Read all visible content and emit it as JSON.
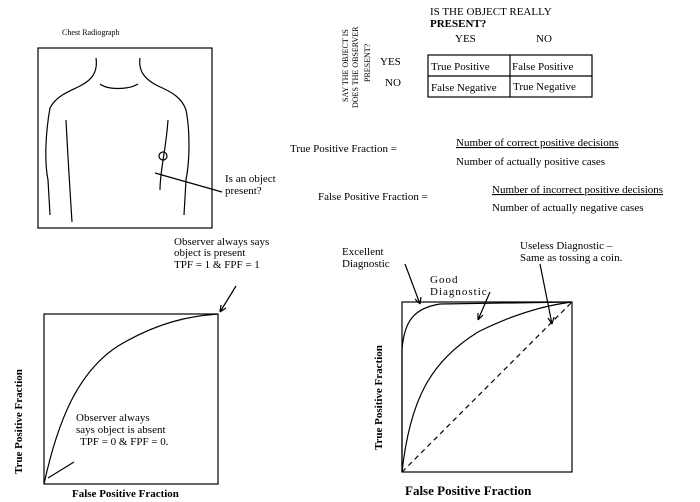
{
  "radiograph": {
    "title": "Chest Radiograph",
    "question": [
      "Is an object",
      "present?"
    ]
  },
  "truth_table": {
    "header": [
      "IS THE OBJECT REALLY",
      "PRESENT?"
    ],
    "columns": [
      "YES",
      "NO"
    ],
    "row_header": [
      "SAY THE OBJECT IS",
      "DOES THE OBSERVER",
      "PRESENT?"
    ],
    "row_labels": [
      "YES",
      "NO"
    ],
    "rows": [
      [
        "True Positive",
        "False Positive"
      ],
      [
        "False Negative",
        "True Negative"
      ]
    ]
  },
  "formulas": [
    {
      "label": "True Positive Fraction =",
      "numerator": "Number of correct positive decisions",
      "denominator": "Number of actually positive cases"
    },
    {
      "label": "False Positive Fraction =",
      "numerator": "Number of incorrect positive decisions",
      "denominator": "Number of actually negative cases"
    }
  ],
  "roc_left": {
    "top_note": [
      "Observer always says",
      "object is present",
      "TPF = 1 & FPF = 1"
    ],
    "bottom_note": [
      "Observer always",
      "says object is absent",
      "TPF = 0 & FPF = 0."
    ],
    "y_label": "True Positive Fraction",
    "x_label": "False Positive Fraction"
  },
  "roc_right": {
    "excellent": [
      "Excellent",
      "Diagnostic"
    ],
    "good": [
      "Good",
      "Diagnostic"
    ],
    "useless": [
      "Useless Diagnostic –",
      "Same as tossing a coin."
    ],
    "y_label": "True Positive Fraction",
    "x_label": "False Positive Fraction"
  }
}
